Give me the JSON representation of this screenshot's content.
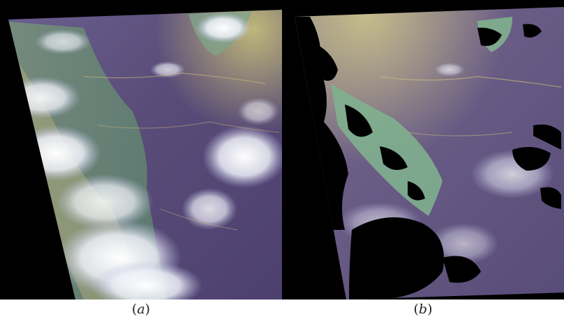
{
  "panels": [
    {
      "id": "a",
      "caption_open": "(",
      "caption_letter": "a",
      "caption_close": ")"
    },
    {
      "id": "b",
      "caption_open": "(",
      "caption_letter": "b",
      "caption_close": ")"
    }
  ],
  "colors": {
    "background": "#ffffff",
    "frame_black": "#000000",
    "ocean_purple": "#5d4f7c",
    "land_green": "#6a9a7a",
    "cloud_white": "#f4f4f8",
    "haze_yellow": "#c9c27a",
    "mask_black": "#000000"
  }
}
